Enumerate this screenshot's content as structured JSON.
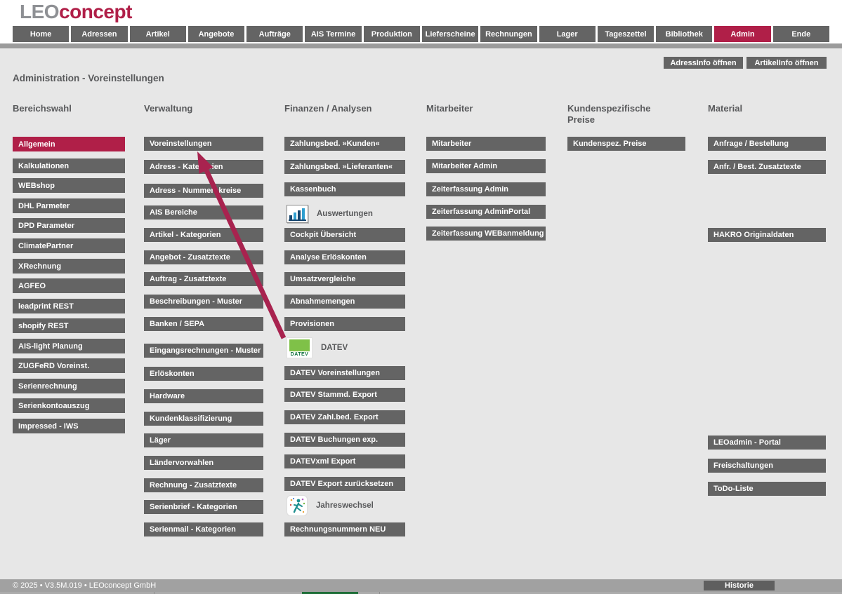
{
  "brand": {
    "logo_leo": "LEO",
    "logo_concept": "concept"
  },
  "nav": {
    "tabs": [
      {
        "label": "Home"
      },
      {
        "label": "Adressen"
      },
      {
        "label": "Artikel"
      },
      {
        "label": "Angebote"
      },
      {
        "label": "Aufträge"
      },
      {
        "label": "AIS Termine"
      },
      {
        "label": "Produktion"
      },
      {
        "label": "Lieferscheine"
      },
      {
        "label": "Rechnungen"
      },
      {
        "label": "Lager"
      },
      {
        "label": "Tageszettel"
      },
      {
        "label": "Bibliothek"
      },
      {
        "label": "Admin",
        "active": true
      },
      {
        "label": "Ende"
      }
    ]
  },
  "toolbar": {
    "adressinfo_label": "AdressInfo öffnen",
    "artikelinfo_label": "ArtikelInfo öffnen"
  },
  "page_title": "Administration - Voreinstellungen",
  "columns": [
    {
      "header": "Bereichswahl",
      "items": [
        {
          "type": "button",
          "label": "Allgemein",
          "selected": true
        },
        {
          "type": "button",
          "label": "Kalkulationen"
        },
        {
          "type": "button",
          "label": "WEBshop"
        },
        {
          "type": "button",
          "label": "DHL Parmeter"
        },
        {
          "type": "button",
          "label": "DPD Parameter"
        },
        {
          "type": "button",
          "label": "ClimatePartner"
        },
        {
          "type": "button",
          "label": "XRechnung"
        },
        {
          "type": "button",
          "label": "AGFEO"
        },
        {
          "type": "button",
          "label": "leadprint REST"
        },
        {
          "type": "button",
          "label": "shopify REST"
        },
        {
          "type": "button",
          "label": "AIS-light Planung"
        },
        {
          "type": "button",
          "label": "ZUGFeRD Voreinst."
        },
        {
          "type": "button",
          "label": "Serienrechnung"
        },
        {
          "type": "button",
          "label": "Serienkontoauszug"
        },
        {
          "type": "button",
          "label": "Impressed - IWS"
        }
      ]
    },
    {
      "header": "Verwaltung",
      "items": [
        {
          "type": "button",
          "label": "Voreinstellungen"
        },
        {
          "type": "button",
          "label": "Adress - Kategorien"
        },
        {
          "type": "button",
          "label": "Adress - Nummernkreise"
        },
        {
          "type": "button",
          "label": "AIS Bereiche"
        },
        {
          "type": "button",
          "label": "Artikel - Kategorien"
        },
        {
          "type": "button",
          "label": "Angebot - Zusatztexte"
        },
        {
          "type": "button",
          "label": "Auftrag - Zusatztexte"
        },
        {
          "type": "button",
          "label": "Beschreibungen - Muster"
        },
        {
          "type": "button",
          "label": "Banken / SEPA"
        },
        {
          "type": "button",
          "label": "Eingangsrechnungen - Muster"
        },
        {
          "type": "button",
          "label": "Erlöskonten"
        },
        {
          "type": "button",
          "label": "Hardware"
        },
        {
          "type": "button",
          "label": "Kundenklassifizierung"
        },
        {
          "type": "button",
          "label": "Läger"
        },
        {
          "type": "button",
          "label": "Ländervorwahlen"
        },
        {
          "type": "button",
          "label": "Rechnung - Zusatztexte"
        },
        {
          "type": "button",
          "label": "Serienbrief - Kategorien"
        },
        {
          "type": "button",
          "label": "Serienmail - Kategorien"
        }
      ]
    },
    {
      "header": "Finanzen / Analysen",
      "items": [
        {
          "type": "button",
          "label": "Zahlungsbed. »Kunden«"
        },
        {
          "type": "button",
          "label": "Zahlungsbed. »Lieferanten«"
        },
        {
          "type": "button",
          "label": "Kassenbuch"
        },
        {
          "type": "icon-label",
          "icon": "bar-chart-icon",
          "label": "Auswertungen"
        },
        {
          "type": "button",
          "label": "Cockpit Übersicht"
        },
        {
          "type": "button",
          "label": "Analyse Erlöskonten"
        },
        {
          "type": "button",
          "label": "Umsatzvergleiche"
        },
        {
          "type": "button",
          "label": "Abnahmemengen"
        },
        {
          "type": "button",
          "label": "Provisionen"
        },
        {
          "type": "icon-label",
          "icon": "datev-icon",
          "label": "DATEV"
        },
        {
          "type": "button",
          "label": "DATEV Voreinstellungen"
        },
        {
          "type": "button",
          "label": "DATEV Stammd. Export"
        },
        {
          "type": "button",
          "label": "DATEV Zahl.bed. Export"
        },
        {
          "type": "button",
          "label": "DATEV Buchungen exp."
        },
        {
          "type": "button",
          "label": "DATEVxml Export"
        },
        {
          "type": "button",
          "label": "DATEV Export zurücksetzen"
        },
        {
          "type": "icon-label",
          "icon": "runner-icon",
          "label": "Jahreswechsel"
        },
        {
          "type": "button",
          "label": "Rechnungsnummern NEU"
        }
      ]
    },
    {
      "header": "Mitarbeiter",
      "items": [
        {
          "type": "button",
          "label": "Mitarbeiter"
        },
        {
          "type": "button",
          "label": "Mitarbeiter Admin"
        },
        {
          "type": "button",
          "label": "Zeiterfassung Admin"
        },
        {
          "type": "button",
          "label": "Zeiterfassung AdminPortal"
        },
        {
          "type": "button",
          "label": "Zeiterfassung WEBanmeldung"
        }
      ]
    },
    {
      "header": "Kundenspezifische Preise",
      "items": [
        {
          "type": "button",
          "label": "Kundenspez. Preise"
        }
      ]
    },
    {
      "header": "Material",
      "items": [
        {
          "type": "button",
          "label": "Anfrage / Bestellung"
        },
        {
          "type": "button",
          "label": "Anfr. / Best. Zusatztexte"
        },
        {
          "type": "button",
          "label": "HAKRO Originaldaten"
        },
        {
          "type": "button",
          "label": "LEOadmin - Portal"
        },
        {
          "type": "button",
          "label": "Freischaltungen"
        },
        {
          "type": "button",
          "label": "ToDo-Liste"
        }
      ]
    }
  ],
  "datev_icon_text": "DATEV",
  "annotation": {
    "arrow_points_to": "Voreinstellungen"
  },
  "footer": {
    "copyright": "© 2025 • V3.5M.019 • LEOconcept GmbH",
    "historie_label": "Historie"
  },
  "colors": {
    "accent": "#b01f48",
    "button_gray": "#646464",
    "page_bg": "#e7e7e7",
    "footer_bg": "#a1a1a1",
    "logo_gray": "#8e9094",
    "datev_green": "#7fc148",
    "arrow": "#a8234f"
  }
}
